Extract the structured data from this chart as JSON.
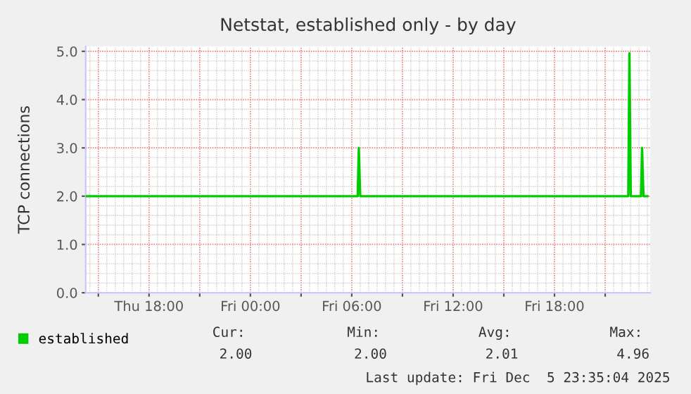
{
  "chart_data": {
    "type": "line",
    "title": "Netstat, established only - by day",
    "ylabel": "TCP connections",
    "x": [
      "2025-12-04T14:15",
      "2025-12-05T06:21",
      "2025-12-05T06:25",
      "2025-12-05T06:30",
      "2025-12-05T22:22",
      "2025-12-05T22:26",
      "2025-12-05T22:31",
      "2025-12-05T23:07",
      "2025-12-05T23:11",
      "2025-12-05T23:16",
      "2025-12-05T23:30"
    ],
    "series": [
      {
        "name": "established",
        "color": "#00cc00",
        "values": [
          2,
          2,
          3,
          2,
          2,
          4.96,
          2,
          2,
          3,
          2,
          2
        ]
      }
    ],
    "xlim": [
      "2025-12-04T14:15",
      "2025-12-05T23:40"
    ],
    "xticks": [
      {
        "value": "2025-12-04T15:00",
        "label": null
      },
      {
        "value": "2025-12-04T18:00",
        "label": "Thu 18:00"
      },
      {
        "value": "2025-12-04T21:00",
        "label": null
      },
      {
        "value": "2025-12-05T00:00",
        "label": "Fri 00:00"
      },
      {
        "value": "2025-12-05T03:00",
        "label": null
      },
      {
        "value": "2025-12-05T06:00",
        "label": "Fri 06:00"
      },
      {
        "value": "2025-12-05T09:00",
        "label": null
      },
      {
        "value": "2025-12-05T12:00",
        "label": "Fri 12:00"
      },
      {
        "value": "2025-12-05T15:00",
        "label": null
      },
      {
        "value": "2025-12-05T18:00",
        "label": "Fri 18:00"
      },
      {
        "value": "2025-12-05T21:00",
        "label": null
      }
    ],
    "ylim": [
      0,
      5.1
    ],
    "yticks": [
      {
        "value": 0,
        "label": "0.0"
      },
      {
        "value": 1,
        "label": "1.0"
      },
      {
        "value": 2,
        "label": "2.0"
      },
      {
        "value": 3,
        "label": "3.0"
      },
      {
        "value": 4,
        "label": "4.0"
      },
      {
        "value": 5,
        "label": "5.0"
      }
    ],
    "grid": true,
    "legend": "bottom left",
    "marker": "none",
    "line_style": "solid",
    "annotations": [
      "Cur:",
      "Min:",
      "Avg:",
      "Max:",
      "2.00",
      "2.00",
      "2.01",
      "4.96",
      "Last update: Fri Dec  5 23:35:04 2025"
    ]
  }
}
